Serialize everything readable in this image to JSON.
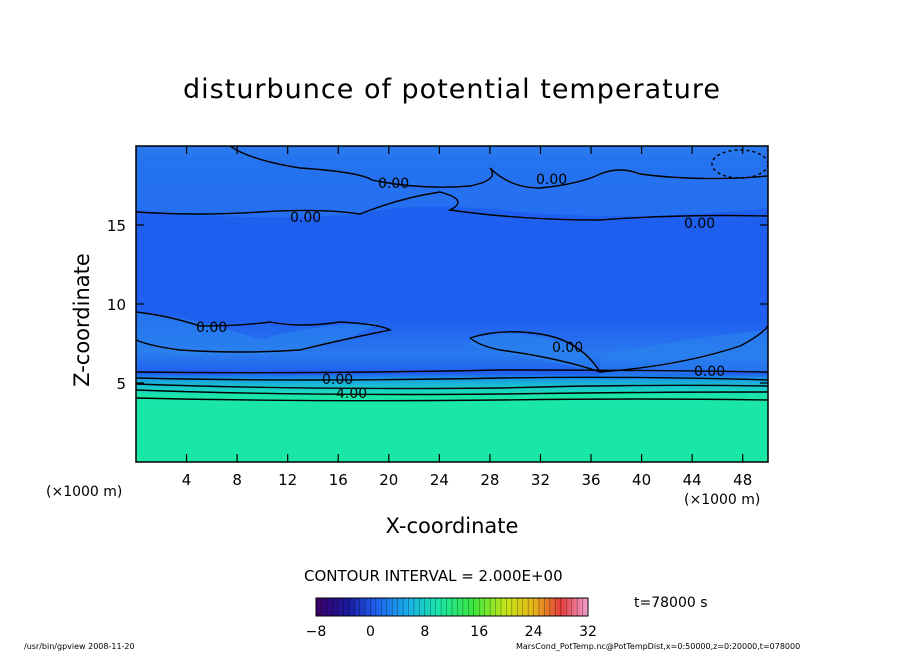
{
  "chart_data": {
    "type": "heatmap",
    "title": "disturbunce of potential temperature",
    "xlabel": "X-coordinate",
    "ylabel": "Z-coordinate",
    "x_unit": "(×1000 m)",
    "y_unit": "(×1000 m)",
    "xlim": [
      0,
      50
    ],
    "ylim": [
      0,
      20
    ],
    "x_ticks": [
      4,
      8,
      12,
      16,
      20,
      24,
      28,
      32,
      36,
      40,
      44,
      48
    ],
    "y_ticks": [
      5,
      10,
      15
    ],
    "contour_interval_text": "CONTOUR INTERVAL = 2.000E+00",
    "contour_labels": [
      "0.00",
      "0.00",
      "0.00",
      "0.00",
      "0.00",
      "0.00",
      "0.00",
      "0.00",
      "4.00"
    ],
    "colorbar": {
      "min": -8,
      "max": 32,
      "ticks": [
        -8,
        0,
        8,
        16,
        24,
        32
      ],
      "colormap": "rainbow"
    },
    "fields": {
      "lower_layer": {
        "z_range": [
          0,
          4
        ],
        "approx_value": 8,
        "color": "#19e6a8"
      },
      "upper_region": {
        "z_range": [
          6,
          20
        ],
        "approx_value": 0,
        "color": "#1f5ff0"
      }
    },
    "time_text": "t=78000 s",
    "grid": false
  },
  "footer": {
    "left": "/usr/bin/gpview  2008-11-20",
    "right": "MarsCond_PotTemp.nc@PotTempDist,x=0:50000,z=0:20000,t=078000"
  }
}
